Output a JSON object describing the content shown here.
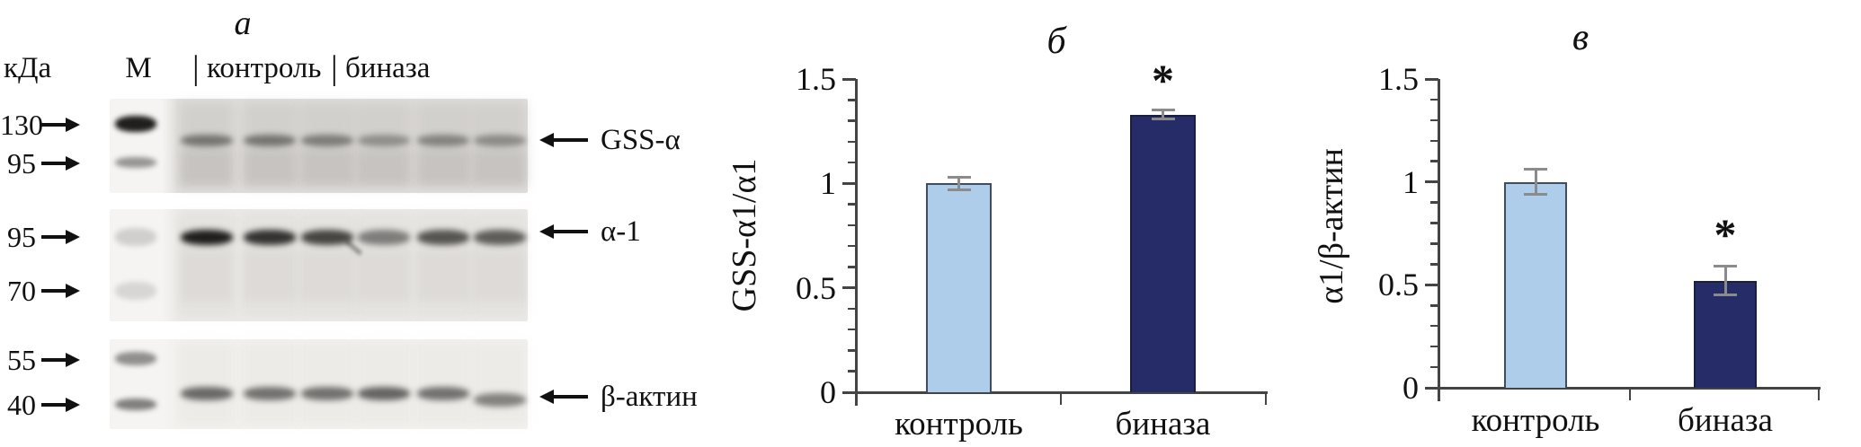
{
  "figure": {
    "panel_a": {
      "title": "а",
      "kda_label": "кДа",
      "marker_lane_label": "М",
      "lane_separator": "|",
      "group_labels": [
        "контроль",
        "биназа"
      ],
      "molecular_weight_markers": [
        "130",
        "95",
        "95",
        "70",
        "55",
        "40"
      ],
      "band_labels": [
        "GSS-α",
        "α-1",
        "β-актин"
      ],
      "num_sample_lanes": 6
    }
  },
  "chart_data": [
    {
      "type": "bar",
      "panel_label": "б",
      "title": "б",
      "categories": [
        "контроль",
        "биназа"
      ],
      "values": [
        1.0,
        1.33
      ],
      "errors": [
        0.03,
        0.02
      ],
      "significance": [
        "",
        "*"
      ],
      "ylabel": "GSS-α1/α1",
      "ylim": [
        0,
        1.5
      ],
      "yticks": [
        0,
        0.5,
        1,
        1.5
      ],
      "ytick_labels": [
        "0",
        "0.5",
        "1",
        "1.5"
      ],
      "minor_tick_step": 0.1,
      "bar_colors": [
        "#aecdea",
        "#262c68"
      ],
      "grid": false,
      "legend": null
    },
    {
      "type": "bar",
      "panel_label": "в",
      "title": "в",
      "categories": [
        "контроль",
        "биназа"
      ],
      "values": [
        1.0,
        0.52
      ],
      "errors": [
        0.06,
        0.07
      ],
      "significance": [
        "",
        "*"
      ],
      "ylabel": "α1/β-актин",
      "ylim": [
        0,
        1.5
      ],
      "yticks": [
        0,
        0.5,
        1,
        1.5
      ],
      "ytick_labels": [
        "0",
        "0.5",
        "1",
        "1.5"
      ],
      "minor_tick_step": 0.1,
      "bar_colors": [
        "#aecdea",
        "#262c68"
      ],
      "grid": false,
      "legend": null
    }
  ],
  "colors": {
    "bar_control": "#aecdea",
    "bar_binase": "#262c68",
    "bar_border_light": "#3f4d60",
    "bar_border_dark": "#191e45",
    "error_bar": "#8b8b8b",
    "axis": "#444444",
    "text": "#111111"
  }
}
